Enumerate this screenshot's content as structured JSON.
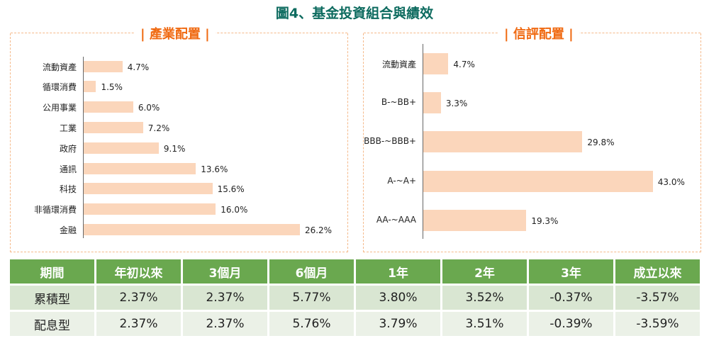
{
  "title": "圖4、基金投資組合與績效",
  "chart_data": [
    {
      "type": "bar",
      "orientation": "horizontal",
      "title": "產業配置",
      "categories": [
        "流動資產",
        "循環消費",
        "公用事業",
        "工業",
        "政府",
        "通訊",
        "科技",
        "非循環消費",
        "金融"
      ],
      "values": [
        4.7,
        1.5,
        6.0,
        7.2,
        9.1,
        13.6,
        15.6,
        16.0,
        26.2
      ],
      "labels": [
        "4.7%",
        "1.5%",
        "6.0%",
        "7.2%",
        "9.1%",
        "13.6%",
        "15.6%",
        "16.0%",
        "26.2%"
      ],
      "color": "#fbd6bb"
    },
    {
      "type": "bar",
      "orientation": "horizontal",
      "title": "信評配置",
      "categories": [
        "流動資產",
        "B-~BB+",
        "BBB-~BBB+",
        "A-~A+",
        "AA-~AAA"
      ],
      "values": [
        4.7,
        3.3,
        29.8,
        43.0,
        19.3
      ],
      "labels": [
        "4.7%",
        "3.3%",
        "29.8%",
        "43.0%",
        "19.3%"
      ],
      "color": "#fbd6bb"
    }
  ],
  "table": {
    "headers": [
      "期間",
      "年初以來",
      "3個月",
      "6個月",
      "1年",
      "2年",
      "3年",
      "成立以來"
    ],
    "rows": [
      [
        "累積型",
        "2.37%",
        "2.37%",
        "5.77%",
        "3.80%",
        "3.52%",
        "-0.37%",
        "-3.57%"
      ],
      [
        "配息型",
        "2.37%",
        "2.37%",
        "5.76%",
        "3.79%",
        "3.51%",
        "-0.39%",
        "-3.59%"
      ]
    ]
  }
}
